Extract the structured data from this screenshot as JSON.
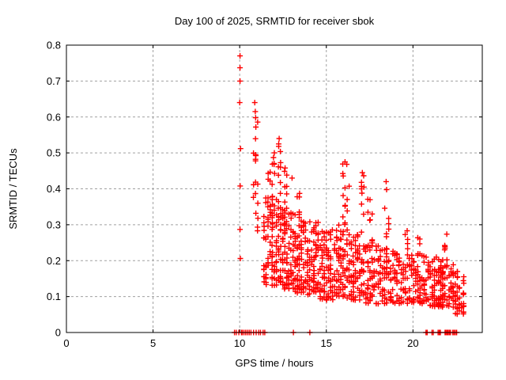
{
  "page": {
    "background": "#ffffff"
  },
  "chart_data": {
    "type": "scatter",
    "title": "Day 100 of 2025, SRMTID for receiver sbok",
    "xlabel": "GPS time / hours",
    "ylabel": "SRMTID / TECUs",
    "xlim": [
      0,
      24
    ],
    "ylim": [
      0,
      0.8
    ],
    "xticks": [
      0,
      5,
      10,
      15,
      20
    ],
    "yticks": [
      0,
      0.1,
      0.2,
      0.3,
      0.4,
      0.5,
      0.6,
      0.7,
      0.8
    ],
    "grid": true,
    "legend": "none",
    "marker": "plus",
    "colors": {
      "marker": "#ff0000",
      "grid": "#a0a0a0",
      "frame": "#000000",
      "background": "#ffffff"
    },
    "seed": 987654321,
    "points": [
      [
        10.02,
        0.77
      ],
      [
        10.02,
        0.737
      ],
      [
        10.02,
        0.7
      ],
      [
        10.0,
        0.64
      ],
      [
        10.05,
        0.512
      ],
      [
        10.03,
        0.408
      ],
      [
        10.02,
        0.287
      ],
      [
        10.04,
        0.206
      ],
      [
        10.87,
        0.64
      ],
      [
        10.9,
        0.615
      ],
      [
        11.95,
        0.487
      ],
      [
        12.0,
        0.5
      ],
      [
        12.25,
        0.525
      ],
      [
        12.28,
        0.54
      ],
      [
        16.08,
        0.475
      ],
      [
        16.18,
        0.468
      ],
      [
        17.08,
        0.445
      ],
      [
        18.45,
        0.42
      ],
      [
        12.62,
        0.458
      ],
      [
        13.02,
        0.43
      ]
    ],
    "zeros_x": [
      9.7,
      9.8,
      9.95,
      10.1,
      10.15,
      10.25,
      10.35,
      10.45,
      10.55,
      10.65,
      10.8,
      10.95,
      11.1,
      11.2,
      11.35,
      11.45,
      13.1,
      14.05,
      20.75,
      20.82,
      21.1,
      21.17,
      21.45,
      21.52,
      21.58,
      21.85,
      21.9,
      21.97,
      22.03,
      22.1,
      22.17,
      22.3,
      22.37,
      22.45,
      22.52
    ],
    "clusters": [
      {
        "x": [
          10.82,
          11.05
        ],
        "y": [
          0.27,
          0.6
        ],
        "n": 20,
        "bias": 1.0
      },
      {
        "x": [
          11.35,
          11.95
        ],
        "y": [
          0.13,
          0.4
        ],
        "n": 55,
        "bias": 1.5
      },
      {
        "x": [
          11.55,
          11.78
        ],
        "y": [
          0.3,
          0.46
        ],
        "n": 7,
        "bias": 1.0
      },
      {
        "x": [
          11.82,
          12.45
        ],
        "y": [
          0.13,
          0.37
        ],
        "n": 60,
        "bias": 1.5
      },
      {
        "x": [
          11.9,
          12.1
        ],
        "y": [
          0.38,
          0.5
        ],
        "n": 5,
        "bias": 1.0
      },
      {
        "x": [
          12.2,
          12.4
        ],
        "y": [
          0.38,
          0.53
        ],
        "n": 8,
        "bias": 1.0
      },
      {
        "x": [
          12.45,
          13.15
        ],
        "y": [
          0.12,
          0.35
        ],
        "n": 75,
        "bias": 1.5
      },
      {
        "x": [
          12.55,
          12.78
        ],
        "y": [
          0.33,
          0.455
        ],
        "n": 6,
        "bias": 1.0
      },
      {
        "x": [
          13.15,
          13.85
        ],
        "y": [
          0.11,
          0.33
        ],
        "n": 75,
        "bias": 1.4
      },
      {
        "x": [
          13.3,
          13.5
        ],
        "y": [
          0.32,
          0.41
        ],
        "n": 6,
        "bias": 1.0
      },
      {
        "x": [
          13.85,
          14.65
        ],
        "y": [
          0.1,
          0.31
        ],
        "n": 80,
        "bias": 1.4
      },
      {
        "x": [
          14.65,
          15.45
        ],
        "y": [
          0.09,
          0.29
        ],
        "n": 75,
        "bias": 1.3
      },
      {
        "x": [
          15.45,
          16.2
        ],
        "y": [
          0.1,
          0.3
        ],
        "n": 65,
        "bias": 1.3
      },
      {
        "x": [
          15.9,
          16.35
        ],
        "y": [
          0.3,
          0.47
        ],
        "n": 13,
        "bias": 1.0
      },
      {
        "x": [
          16.2,
          17.1
        ],
        "y": [
          0.09,
          0.28
        ],
        "n": 75,
        "bias": 1.3
      },
      {
        "x": [
          16.95,
          17.25
        ],
        "y": [
          0.29,
          0.44
        ],
        "n": 8,
        "bias": 1.0
      },
      {
        "x": [
          17.1,
          18.0
        ],
        "y": [
          0.08,
          0.26
        ],
        "n": 70,
        "bias": 1.3
      },
      {
        "x": [
          17.35,
          17.6
        ],
        "y": [
          0.27,
          0.42
        ],
        "n": 6,
        "bias": 1.0
      },
      {
        "x": [
          18.0,
          18.95
        ],
        "y": [
          0.08,
          0.24
        ],
        "n": 65,
        "bias": 1.2
      },
      {
        "x": [
          18.35,
          18.58
        ],
        "y": [
          0.25,
          0.41
        ],
        "n": 7,
        "bias": 1.0
      },
      {
        "x": [
          18.95,
          19.85
        ],
        "y": [
          0.08,
          0.23
        ],
        "n": 60,
        "bias": 1.2
      },
      {
        "x": [
          19.55,
          19.72
        ],
        "y": [
          0.22,
          0.3
        ],
        "n": 5,
        "bias": 1.0
      },
      {
        "x": [
          19.85,
          20.7
        ],
        "y": [
          0.08,
          0.22
        ],
        "n": 60,
        "bias": 1.2
      },
      {
        "x": [
          20.3,
          20.48
        ],
        "y": [
          0.2,
          0.27
        ],
        "n": 5,
        "bias": 1.0
      },
      {
        "x": [
          20.7,
          21.55
        ],
        "y": [
          0.07,
          0.21
        ],
        "n": 65,
        "bias": 1.2
      },
      {
        "x": [
          21.55,
          22.35
        ],
        "y": [
          0.07,
          0.19
        ],
        "n": 70,
        "bias": 1.2
      },
      {
        "x": [
          21.7,
          21.92
        ],
        "y": [
          0.2,
          0.275
        ],
        "n": 8,
        "bias": 1.0
      },
      {
        "x": [
          22.35,
          23.0
        ],
        "y": [
          0.05,
          0.17
        ],
        "n": 45,
        "bias": 1.1
      }
    ]
  }
}
